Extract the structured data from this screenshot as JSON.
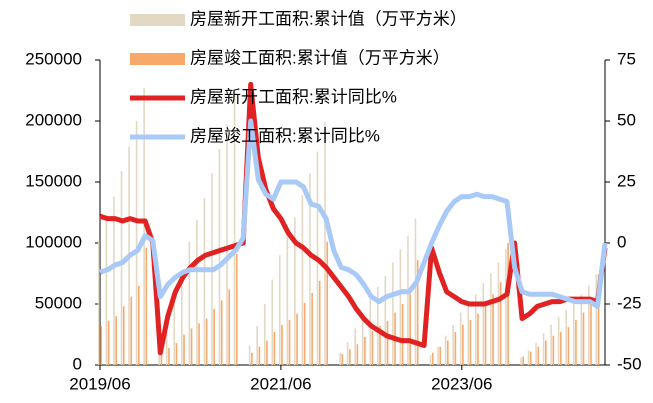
{
  "chart_data": {
    "type": "bar_line",
    "categories": [
      "2019/06",
      null,
      null,
      null,
      null,
      null,
      null,
      null,
      null,
      null,
      null,
      null,
      null,
      null,
      null,
      null,
      null,
      null,
      null,
      null,
      null,
      null,
      null,
      null,
      "2021/06",
      null,
      null,
      null,
      null,
      null,
      null,
      null,
      null,
      null,
      null,
      null,
      null,
      null,
      null,
      null,
      null,
      null,
      null,
      null,
      null,
      null,
      null,
      null,
      "2023/06",
      null,
      null,
      null,
      null,
      null,
      null,
      null,
      null,
      null,
      null,
      null,
      null,
      null,
      null,
      null,
      null,
      null,
      null,
      null
    ],
    "series": [
      {
        "name": "房屋新开工面积:累计值（万平方米）",
        "type": "bar",
        "axis": "y",
        "color": "#e3d8c4",
        "values": [
          102000,
          120000,
          138000,
          159000,
          179000,
          200000,
          227000,
          null,
          18000,
          36000,
          56000,
          78000,
          101000,
          119000,
          137000,
          157000,
          177000,
          197000,
          224000,
          null,
          16000,
          32000,
          50000,
          70000,
          90000,
          105000,
          121000,
          139000,
          157000,
          175000,
          199000,
          null,
          10000,
          19000,
          30000,
          42000,
          54000,
          64000,
          73000,
          84000,
          95000,
          106000,
          120000,
          null,
          8000,
          15000,
          24000,
          33000,
          43000,
          50000,
          58000,
          67000,
          75000,
          84000,
          95000,
          null,
          6000,
          12000,
          18000,
          26000,
          33000,
          39000,
          45000,
          52000,
          58000,
          65000,
          74000,
          null
        ]
      },
      {
        "name": "房屋竣工面积:累计值（万平方米）",
        "type": "bar",
        "axis": "y",
        "color": "#f8a868",
        "values": [
          32000,
          36000,
          40000,
          48000,
          56000,
          65000,
          96000,
          null,
          9000,
          14000,
          18000,
          25000,
          30000,
          34000,
          38000,
          46000,
          53000,
          62000,
          91000,
          null,
          10000,
          15000,
          20000,
          27000,
          33000,
          37000,
          42000,
          51000,
          59000,
          69000,
          101000,
          null,
          9000,
          13000,
          17000,
          23000,
          28000,
          32000,
          36000,
          43000,
          50000,
          58000,
          86000,
          null,
          10000,
          15000,
          20000,
          27000,
          33000,
          37000,
          42000,
          50000,
          58000,
          68000,
          100000,
          null,
          7000,
          11000,
          15000,
          20000,
          24000,
          27000,
          31000,
          37000,
          43000,
          50000,
          74000,
          null
        ]
      },
      {
        "name": "房屋新开工面积:累计同比%",
        "type": "line",
        "axis": "y2",
        "color": "#e02222",
        "values": [
          11,
          10,
          10,
          9,
          10,
          9,
          9,
          0,
          -45,
          -30,
          -20,
          -14,
          -10,
          -7,
          -5,
          -4,
          -3,
          -2,
          -1,
          0,
          65,
          35,
          22,
          14,
          10,
          4,
          0,
          -2,
          -5,
          -7,
          -10,
          -14,
          -18,
          -22,
          -27,
          -31,
          -34,
          -36,
          -38,
          -39,
          -40,
          -40,
          -41,
          -42,
          -2,
          -12,
          -20,
          -22,
          -24,
          -25,
          -25,
          -25,
          -24,
          -23,
          -21,
          0,
          -31,
          -29,
          -26,
          -25,
          -24,
          -24,
          -23,
          -23,
          -23,
          -23,
          -24,
          -2
        ]
      },
      {
        "name": "房屋竣工面积:累计同比%",
        "type": "line",
        "axis": "y2",
        "color": "#a9c9f7",
        "values": [
          -12,
          -11,
          -9,
          -8,
          -5,
          -3,
          3,
          1,
          -22,
          -17,
          -14,
          -12,
          -11,
          -11,
          -11,
          -11,
          -9,
          -6,
          -3,
          2,
          50,
          26,
          20,
          18,
          25,
          25,
          25,
          23,
          16,
          15,
          10,
          -3,
          -10,
          -11,
          -13,
          -17,
          -22,
          -24,
          -22,
          -21,
          -20,
          -20,
          -16,
          -8,
          0,
          7,
          13,
          17,
          19,
          19,
          20,
          19,
          19,
          18,
          17,
          -10,
          -20,
          -21,
          -21,
          -21,
          -21,
          -22,
          -23,
          -24,
          -24,
          -24,
          -26,
          0
        ]
      }
    ],
    "ylim": [
      0,
      250000
    ],
    "yticks": [
      0,
      50000,
      100000,
      150000,
      200000,
      250000
    ],
    "y2lim": [
      -50,
      75
    ],
    "y2ticks": [
      -50,
      -25,
      0,
      25,
      50,
      75
    ],
    "grid": false,
    "legend": "upper left"
  }
}
